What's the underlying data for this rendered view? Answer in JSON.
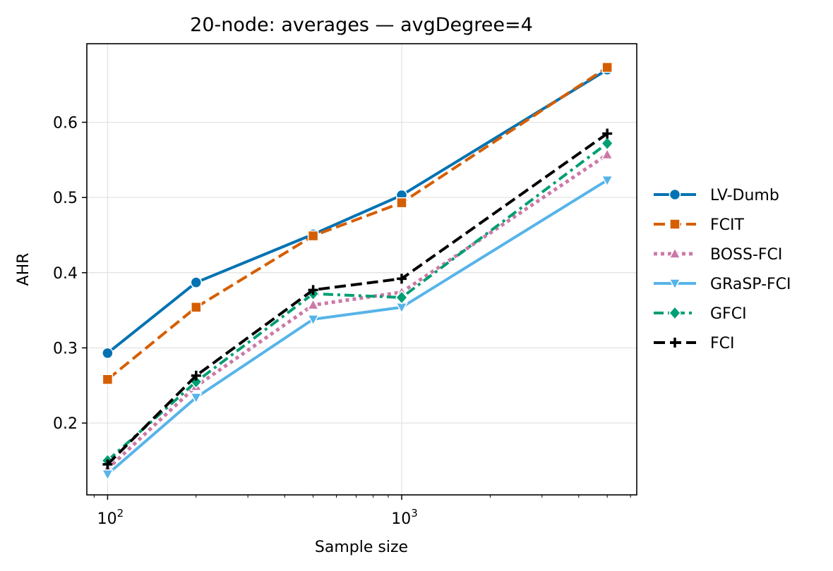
{
  "chart_data": {
    "type": "line",
    "title": "20-node: averages — avgDegree=4",
    "xlabel": "Sample size",
    "ylabel": "AHR",
    "xscale": "log",
    "xlim": [
      85,
      6300
    ],
    "ylim": [
      0.1045,
      0.7045
    ],
    "x": [
      100,
      200,
      500,
      1000,
      5000
    ],
    "xticks": [
      {
        "value": 100,
        "base": "10",
        "exp": "2"
      },
      {
        "value": 1000,
        "base": "10",
        "exp": "3"
      }
    ],
    "yticks": [
      0.2,
      0.3,
      0.4,
      0.5,
      0.6
    ],
    "ytick_labels": [
      "0.2",
      "0.3",
      "0.4",
      "0.5",
      "0.6"
    ],
    "grid": true,
    "legend_position": "outside-right",
    "series": [
      {
        "name": "LV-Dumb",
        "values": [
          0.293,
          0.387,
          0.451,
          0.503,
          0.67
        ],
        "color": "#0072b2",
        "dash": "solid",
        "marker": "circle",
        "width": 4
      },
      {
        "name": "FCIT",
        "values": [
          0.258,
          0.354,
          0.449,
          0.493,
          0.673
        ],
        "color": "#d55e00",
        "dash": "dashed",
        "marker": "square",
        "width": 4
      },
      {
        "name": "BOSS-FCI",
        "values": [
          0.139,
          0.249,
          0.357,
          0.374,
          0.557
        ],
        "color": "#cc79a7",
        "dash": "dotted",
        "marker": "triangle-up",
        "width": 5
      },
      {
        "name": "GRaSP-FCI",
        "values": [
          0.132,
          0.234,
          0.338,
          0.354,
          0.523
        ],
        "color": "#56b4e9",
        "dash": "solid",
        "marker": "triangle-down",
        "width": 4
      },
      {
        "name": "GFCI",
        "values": [
          0.15,
          0.255,
          0.372,
          0.367,
          0.572
        ],
        "color": "#009e73",
        "dash": "dashdot",
        "marker": "diamond",
        "width": 4
      },
      {
        "name": "FCI",
        "values": [
          0.145,
          0.263,
          0.377,
          0.392,
          0.585
        ],
        "color": "#000000",
        "dash": "dashed",
        "marker": "plus",
        "width": 4
      }
    ]
  }
}
